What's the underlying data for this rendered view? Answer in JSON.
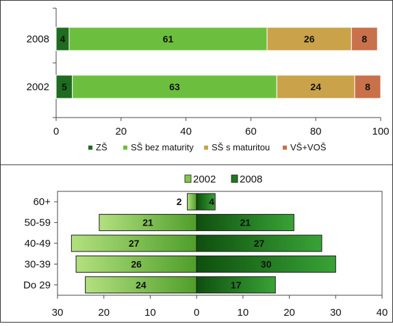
{
  "chart_data": [
    {
      "type": "bar",
      "orientation": "horizontal",
      "stacked": true,
      "categories": [
        "2008",
        "2002"
      ],
      "series": [
        {
          "name": "ZŠ",
          "values": [
            4,
            5
          ],
          "color": "#1f6b1f"
        },
        {
          "name": "SŠ bez maturity",
          "values": [
            61,
            63
          ],
          "color": "#6cbf3e"
        },
        {
          "name": "SŠ s maturitou",
          "values": [
            26,
            24
          ],
          "color": "#c9a24a"
        },
        {
          "name": "VŠ+VOŠ",
          "values": [
            8,
            8
          ],
          "color": "#c8714a"
        }
      ],
      "xlim": [
        0,
        100
      ],
      "xticks": [
        0,
        20,
        40,
        60,
        80,
        100
      ],
      "legend": "bottom",
      "data_labels": true
    },
    {
      "type": "bar",
      "orientation": "horizontal",
      "subtype": "population-pyramid",
      "categories": [
        "60+",
        "50-59",
        "40-49",
        "30-39",
        "Do 29"
      ],
      "series": [
        {
          "name": "2002",
          "values": [
            2,
            21,
            27,
            26,
            24
          ],
          "side": "left",
          "color": "#7fc74a"
        },
        {
          "name": "2008",
          "values": [
            4,
            21,
            27,
            30,
            17
          ],
          "side": "right",
          "color": "#1e7a1e"
        }
      ],
      "xlim": [
        -30,
        40
      ],
      "xticks": [
        -30,
        -20,
        -10,
        0,
        10,
        20,
        30,
        40
      ],
      "xtick_labels": [
        "30",
        "20",
        "10",
        "0",
        "10",
        "20",
        "30",
        "40"
      ],
      "legend": "top",
      "data_labels": true
    }
  ]
}
